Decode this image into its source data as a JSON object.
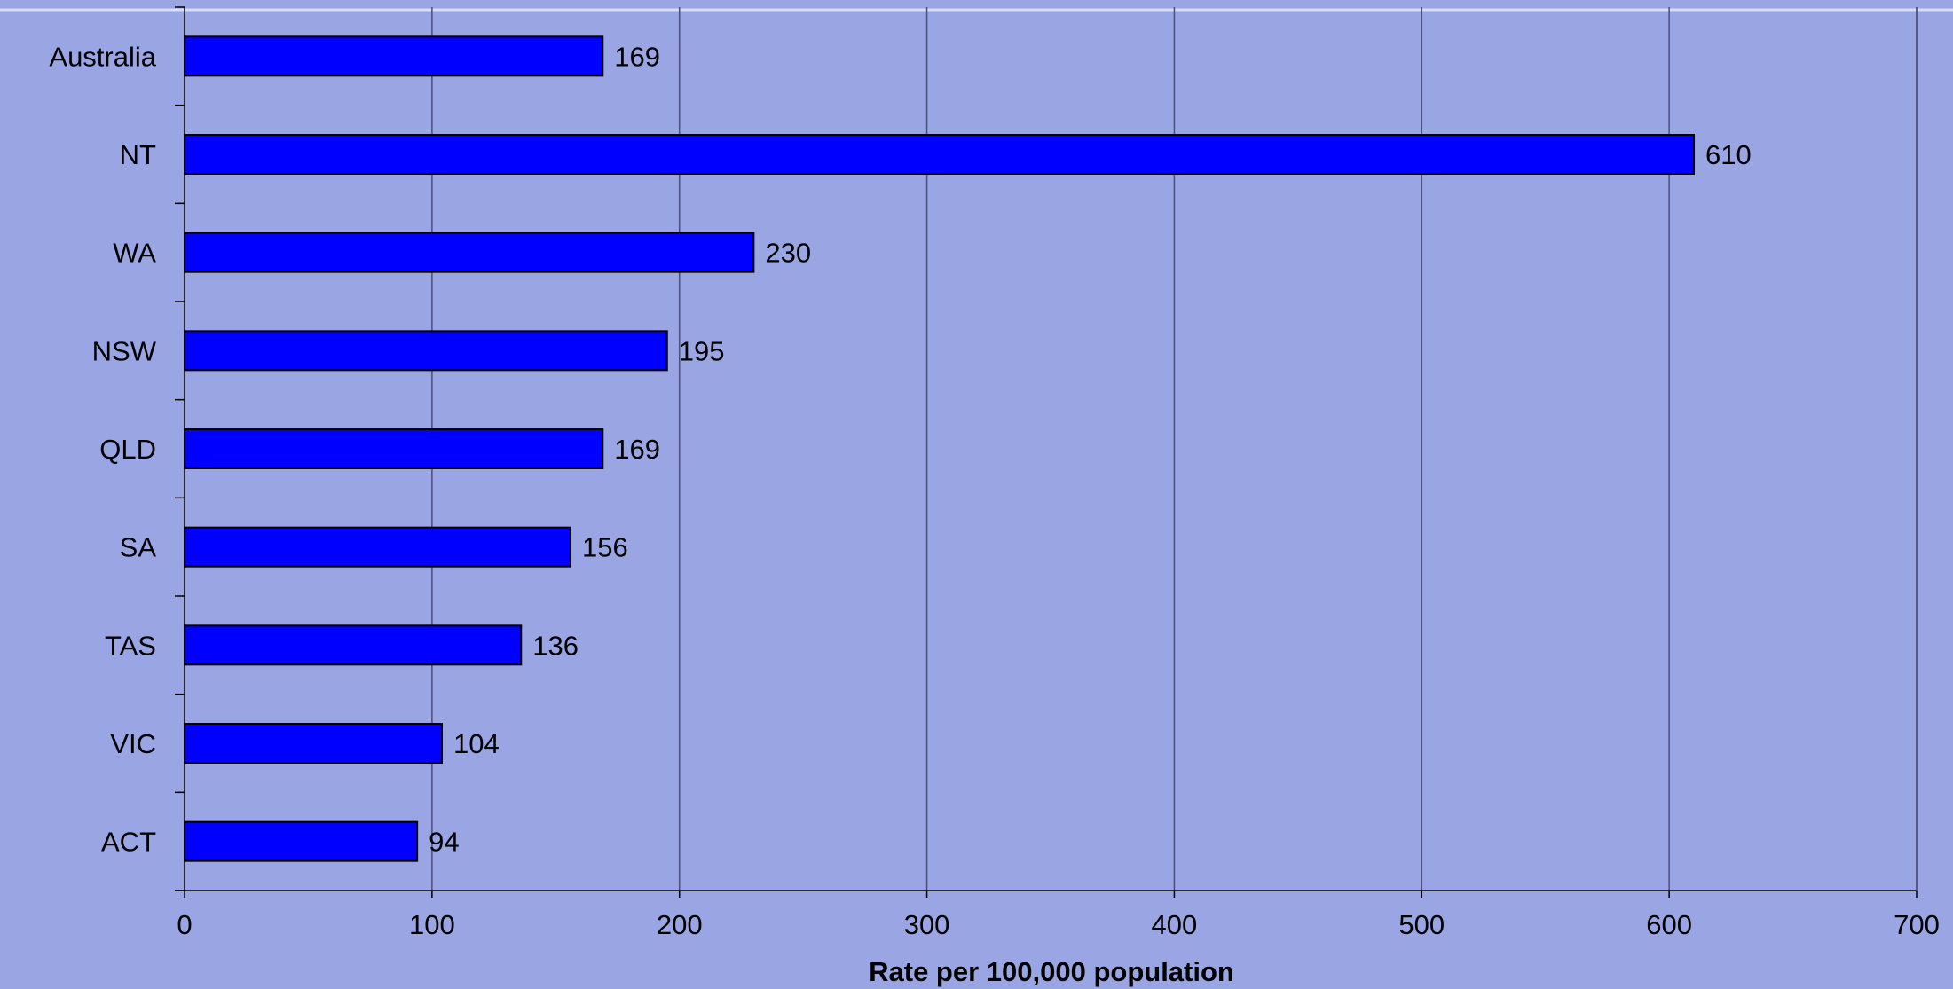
{
  "chart_data": {
    "type": "bar",
    "orientation": "horizontal",
    "categories": [
      "Australia",
      "NT",
      "WA",
      "NSW",
      "QLD",
      "SA",
      "TAS",
      "VIC",
      "ACT"
    ],
    "values": [
      169,
      610,
      230,
      195,
      169,
      156,
      136,
      104,
      94
    ],
    "data_labels": [
      "169",
      "610",
      "230",
      "195",
      "169",
      "156",
      "136",
      "104",
      "94"
    ],
    "xlabel": "Rate per 100,000 population",
    "ylabel": "",
    "xlim": [
      0,
      700
    ],
    "xticks": [
      "0",
      "100",
      "200",
      "300",
      "400",
      "500",
      "600",
      "700"
    ],
    "grid": true,
    "legend": "none",
    "colors": {
      "background": "#9aa5e3",
      "bar_fill": "#0000ff",
      "bar_stroke": "#000000",
      "gridline": "#4a4f7a",
      "axis": "#000000",
      "top_rule": "#d8dcf5"
    }
  }
}
